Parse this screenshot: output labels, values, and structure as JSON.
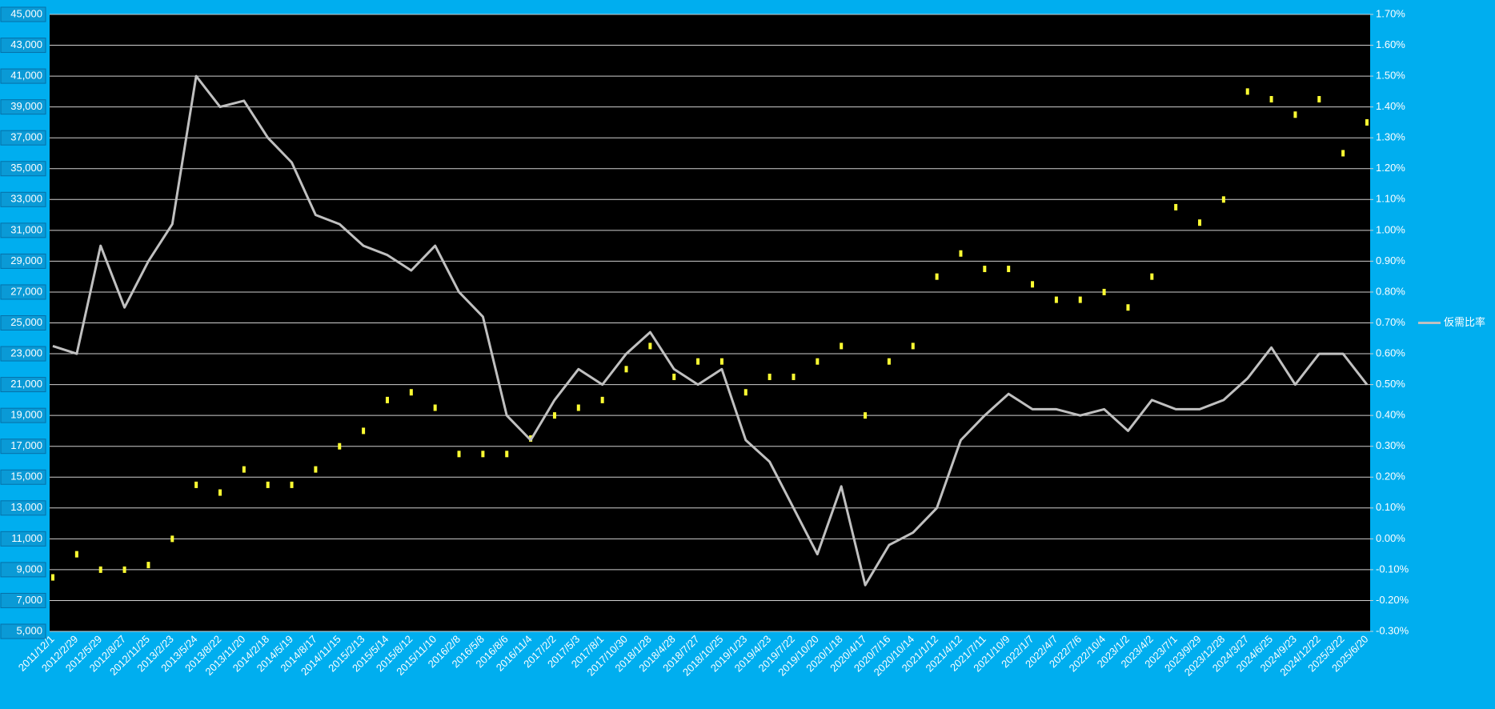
{
  "chart_data": {
    "type": "line",
    "categories": [
      "2011/12/1",
      "2012/2/29",
      "2012/5/29",
      "2012/8/27",
      "2012/11/25",
      "2013/2/23",
      "2013/5/24",
      "2013/8/22",
      "2013/11/20",
      "2014/2/18",
      "2014/5/19",
      "2014/8/17",
      "2014/11/15",
      "2015/2/13",
      "2015/5/14",
      "2015/8/12",
      "2015/11/10",
      "2016/2/8",
      "2016/5/8",
      "2016/8/6",
      "2016/11/4",
      "2017/2/2",
      "2017/5/3",
      "2017/8/1",
      "2017/10/30",
      "2018/1/28",
      "2018/4/28",
      "2018/7/27",
      "2018/10/25",
      "2019/1/23",
      "2019/4/23",
      "2019/7/22",
      "2019/10/20",
      "2020/1/18",
      "2020/4/17",
      "2020/7/16",
      "2020/10/14",
      "2021/1/12",
      "2021/4/12",
      "2021/7/11",
      "2021/10/9",
      "2022/1/7",
      "2022/4/7",
      "2022/7/6",
      "2022/10/4",
      "2023/1/2",
      "2023/4/2",
      "2023/7/1",
      "2023/9/29",
      "2023/12/28",
      "2024/3/27",
      "2024/6/25",
      "2024/9/23",
      "2024/12/22",
      "2025/3/22",
      "2025/6/20"
    ],
    "series": [
      {
        "color": "#ffff33",
        "values": [
          8500,
          10000,
          9000,
          9000,
          9300,
          11000,
          14500,
          14000,
          15500,
          14500,
          14500,
          15500,
          17000,
          18000,
          20000,
          20500,
          19500,
          16500,
          16500,
          16500,
          17500,
          19000,
          19500,
          20000,
          22000,
          23500,
          21500,
          22500,
          22500,
          20500,
          21500,
          21500,
          22500,
          23500,
          19000,
          22500,
          23500,
          28000,
          29500,
          28500,
          28500,
          27500,
          26500,
          26500,
          27000,
          26000,
          28000,
          32500,
          31500,
          33000,
          40000,
          39500,
          38500,
          39500,
          36000,
          38000
        ]
      },
      {
        "name": "仮需比率",
        "color": "#c0c0c0",
        "axis": "y2",
        "values": [
          0.625,
          0.6,
          0.95,
          0.75,
          0.9,
          1.02,
          1.5,
          1.4,
          1.42,
          1.3,
          1.22,
          1.05,
          1.02,
          0.95,
          0.92,
          0.87,
          0.95,
          0.8,
          0.72,
          0.4,
          0.32,
          0.45,
          0.55,
          0.5,
          0.6,
          0.67,
          0.55,
          0.5,
          0.55,
          0.32,
          0.25,
          0.1,
          -0.05,
          0.17,
          -0.15,
          -0.02,
          0.02,
          0.1,
          0.32,
          0.4,
          0.47,
          0.42,
          0.42,
          0.4,
          0.42,
          0.35,
          0.45,
          0.42,
          0.42,
          0.45,
          0.52,
          0.62,
          0.5,
          0.6,
          0.6,
          0.5
        ]
      }
    ],
    "ylim": [
      5000,
      45000
    ],
    "yticks": [
      {
        "value": 5000,
        "label": "5,000"
      },
      {
        "value": 7000,
        "label": "7,000"
      },
      {
        "value": 9000,
        "label": "9,000"
      },
      {
        "value": 11000,
        "label": "11,000"
      },
      {
        "value": 13000,
        "label": "13,000"
      },
      {
        "value": 15000,
        "label": "15,000"
      },
      {
        "value": 17000,
        "label": "17,000"
      },
      {
        "value": 19000,
        "label": "19,000"
      },
      {
        "value": 21000,
        "label": "21,000"
      },
      {
        "value": 23000,
        "label": "23,000"
      },
      {
        "value": 25000,
        "label": "25,000"
      },
      {
        "value": 27000,
        "label": "27,000"
      },
      {
        "value": 29000,
        "label": "29,000"
      },
      {
        "value": 31000,
        "label": "31,000"
      },
      {
        "value": 33000,
        "label": "33,000"
      },
      {
        "value": 35000,
        "label": "35,000"
      },
      {
        "value": 37000,
        "label": "37,000"
      },
      {
        "value": 39000,
        "label": "39,000"
      },
      {
        "value": 41000,
        "label": "41,000"
      },
      {
        "value": 43000,
        "label": "43,000"
      },
      {
        "value": 45000,
        "label": "45,000"
      }
    ],
    "y2lim": [
      -0.3,
      1.7
    ],
    "y2ticks": [
      {
        "value": -0.3,
        "label": "-0.30%"
      },
      {
        "value": -0.2,
        "label": "-0.20%"
      },
      {
        "value": -0.1,
        "label": "-0.10%"
      },
      {
        "value": 0,
        "label": "0.00%"
      },
      {
        "value": 0.1,
        "label": "0.10%"
      },
      {
        "value": 0.2,
        "label": "0.20%"
      },
      {
        "value": 0.3,
        "label": "0.30%"
      },
      {
        "value": 0.4,
        "label": "0.40%"
      },
      {
        "value": 0.5,
        "label": "0.50%"
      },
      {
        "value": 0.6,
        "label": "0.60%"
      },
      {
        "value": 0.7,
        "label": "0.70%"
      },
      {
        "value": 0.8,
        "label": "0.80%"
      },
      {
        "value": 0.9,
        "label": "0.90%"
      },
      {
        "value": 1.0,
        "label": "1.00%"
      },
      {
        "value": 1.1,
        "label": "1.10%"
      },
      {
        "value": 1.2,
        "label": "1.20%"
      },
      {
        "value": 1.3,
        "label": "1.30%"
      },
      {
        "value": 1.4,
        "label": "1.40%"
      },
      {
        "value": 1.5,
        "label": "1.50%"
      },
      {
        "value": 1.6,
        "label": "1.60%"
      },
      {
        "value": 1.7,
        "label": "1.70%"
      }
    ],
    "grid": true,
    "legend": "right"
  }
}
